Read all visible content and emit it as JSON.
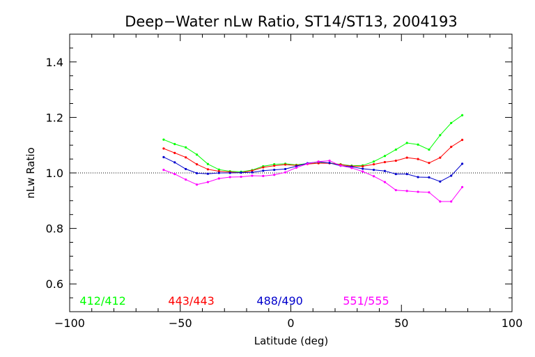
{
  "chart_data": {
    "type": "line",
    "title": "Deep−Water nLw Ratio, ST14/ST13, 2004193",
    "xlabel": "Latitude (deg)",
    "ylabel": "nLw Ratio",
    "xlim": [
      -100,
      100
    ],
    "ylim": [
      0.5,
      1.5
    ],
    "x_ticks": [
      -100,
      -50,
      0,
      50,
      100
    ],
    "y_ticks": [
      0.6,
      0.8,
      1.0,
      1.2,
      1.4
    ],
    "x_tick_labels": [
      "−100",
      "−50",
      "0",
      "50",
      "100"
    ],
    "y_tick_labels": [
      "0.6",
      "0.8",
      "1.0",
      "1.2",
      "1.4"
    ],
    "reference_line": {
      "y": 1.0,
      "style": "dotted"
    },
    "grid": false,
    "legend_placement": "bottom",
    "x": [
      -57.5,
      -52.5,
      -47.5,
      -42.5,
      -37.5,
      -32.5,
      -27.5,
      -22.5,
      -17.5,
      -12.5,
      -7.5,
      -2.5,
      2.5,
      7.5,
      12.5,
      17.5,
      22.5,
      27.5,
      32.5,
      37.5,
      42.5,
      47.5,
      52.5,
      57.5,
      62.5,
      67.5,
      72.5,
      77.5
    ],
    "series": [
      {
        "name": "412/412",
        "color": "#00ff00",
        "values": [
          1.12,
          1.104,
          1.092,
          1.066,
          1.032,
          1.012,
          1.006,
          1.004,
          1.01,
          1.024,
          1.031,
          1.033,
          1.029,
          1.034,
          1.036,
          1.036,
          1.031,
          1.026,
          1.027,
          1.041,
          1.061,
          1.084,
          1.108,
          1.102,
          1.084,
          1.136,
          1.18,
          1.208
        ]
      },
      {
        "name": "443/443",
        "color": "#ff0000",
        "values": [
          1.088,
          1.072,
          1.056,
          1.031,
          1.013,
          1.006,
          1.003,
          1.001,
          1.008,
          1.02,
          1.026,
          1.03,
          1.027,
          1.032,
          1.035,
          1.035,
          1.03,
          1.024,
          1.024,
          1.031,
          1.039,
          1.044,
          1.055,
          1.05,
          1.036,
          1.055,
          1.094,
          1.119
        ]
      },
      {
        "name": "488/490",
        "color": "#0000cc",
        "values": [
          1.057,
          1.038,
          1.014,
          0.999,
          0.997,
          1.0,
          1.0,
          1.001,
          1.002,
          1.008,
          1.011,
          1.014,
          1.024,
          1.035,
          1.04,
          1.036,
          1.026,
          1.022,
          1.015,
          1.011,
          1.007,
          0.996,
          0.996,
          0.985,
          0.984,
          0.969,
          0.99,
          1.033
        ]
      },
      {
        "name": "551/555",
        "color": "#ff00ff",
        "values": [
          1.011,
          0.996,
          0.976,
          0.958,
          0.967,
          0.98,
          0.985,
          0.986,
          0.99,
          0.989,
          0.993,
          1.002,
          1.019,
          1.033,
          1.041,
          1.044,
          1.026,
          1.018,
          1.005,
          0.988,
          0.967,
          0.938,
          0.935,
          0.932,
          0.93,
          0.897,
          0.897,
          0.949
        ]
      }
    ]
  }
}
